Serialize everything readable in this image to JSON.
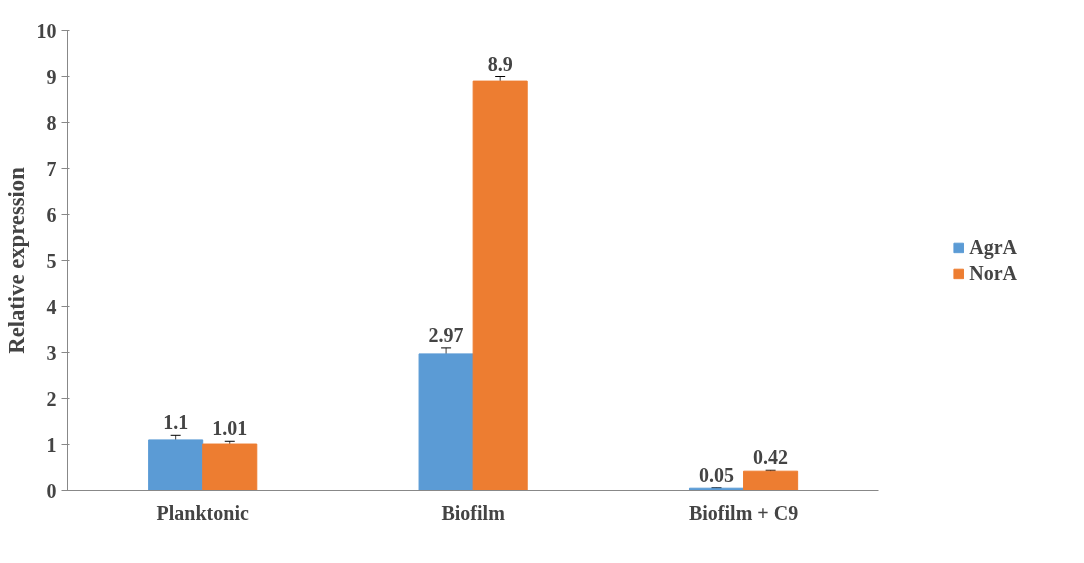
{
  "chart_data": {
    "type": "bar",
    "ylabel": "Relative expression",
    "categories": [
      "Planktonic",
      "Biofilm",
      "Biofilm + C9"
    ],
    "series": [
      {
        "name": "AgrA",
        "color": "#5b9bd5",
        "values": [
          1.1,
          2.97,
          0.05
        ],
        "errors": [
          0.1,
          0.13,
          0.01
        ]
      },
      {
        "name": "NorA",
        "color": "#ed7d31",
        "values": [
          1.01,
          8.9,
          0.42
        ],
        "errors": [
          0.06,
          0.1,
          0.02
        ]
      }
    ],
    "data_labels": true,
    "ylim": [
      0,
      10
    ],
    "yticks": [
      0,
      1,
      2,
      3,
      4,
      5,
      6,
      7,
      8,
      9,
      10
    ],
    "grid": false,
    "legend": "right"
  }
}
